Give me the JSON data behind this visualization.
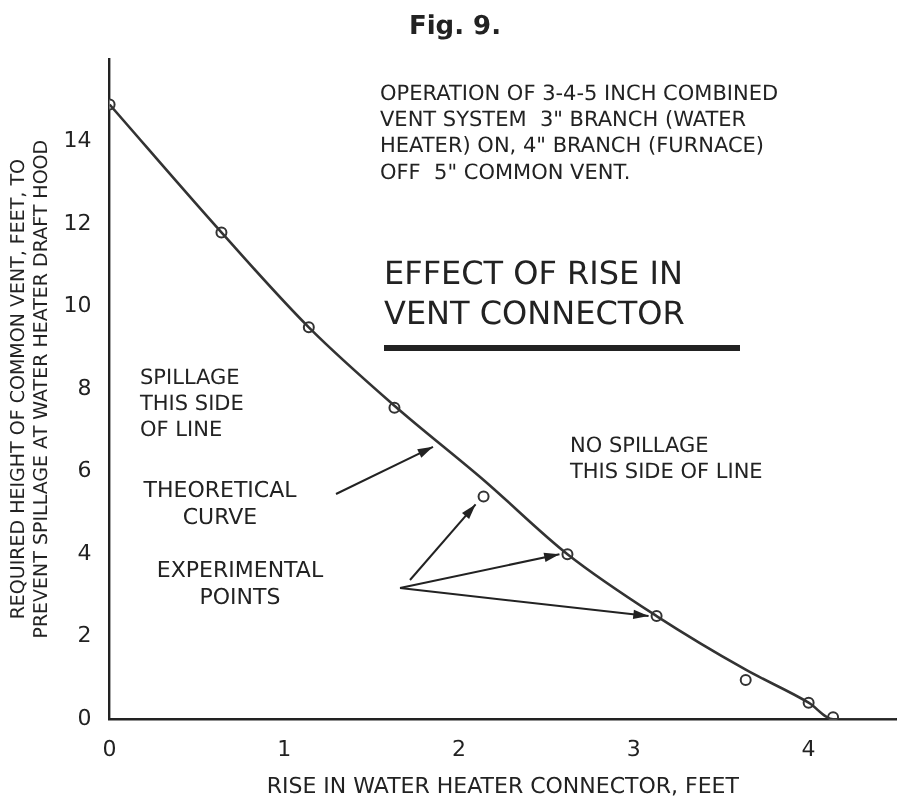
{
  "chart_data": {
    "type": "line",
    "title": "Fig. 9.",
    "xlabel": "RISE IN WATER HEATER CONNECTOR, FEET",
    "ylabel": "REQUIRED HEIGHT OF COMMON VENT, FEET, TO\nPREVENT SPILLAGE AT WATER HEATER DRAFT HOOD",
    "annotations": [
      "OPERATION OF 3-4-5 INCH COMBINED\nVENT SYSTEM  3\" BRANCH (WATER\nHEATER) ON, 4\" BRANCH (FURNACE)\nOFF  5\" COMMON VENT.",
      "EFFECT OF RISE IN\nVENT CONNECTOR",
      "SPILLAGE\nTHIS SIDE\nOF LINE",
      "NO SPILLAGE\nTHIS SIDE OF LINE",
      "THEORETICAL\nCURVE",
      "EXPERIMENTAL\nPOINTS"
    ],
    "series": [
      {
        "color": "#333333",
        "marker": "none",
        "x": [
          0,
          0.64,
          1.14,
          1.63,
          2.14,
          2.62,
          3.13,
          3.64,
          4.0,
          4.14,
          4.5
        ],
        "values": [
          14.9,
          11.8,
          9.5,
          7.6,
          5.8,
          4.0,
          2.5,
          1.2,
          0.4,
          0,
          0
        ]
      },
      {
        "type": "scatter",
        "color": "#333333",
        "marker": "circle",
        "x": [
          0,
          0.64,
          1.14,
          1.63,
          2.14,
          2.62,
          3.13,
          3.64,
          4.0,
          4.14
        ],
        "values": [
          14.9,
          11.8,
          9.5,
          7.55,
          5.4,
          4.0,
          2.5,
          0.95,
          0.4,
          0.05
        ]
      }
    ],
    "xlim": [
      0,
      4.5
    ],
    "xticks": [
      0,
      1,
      2,
      3,
      4
    ],
    "ylim": [
      0,
      16
    ],
    "yticks": [
      0,
      2,
      4,
      6,
      8,
      10,
      12,
      14
    ],
    "grid": false,
    "legend": false
  }
}
